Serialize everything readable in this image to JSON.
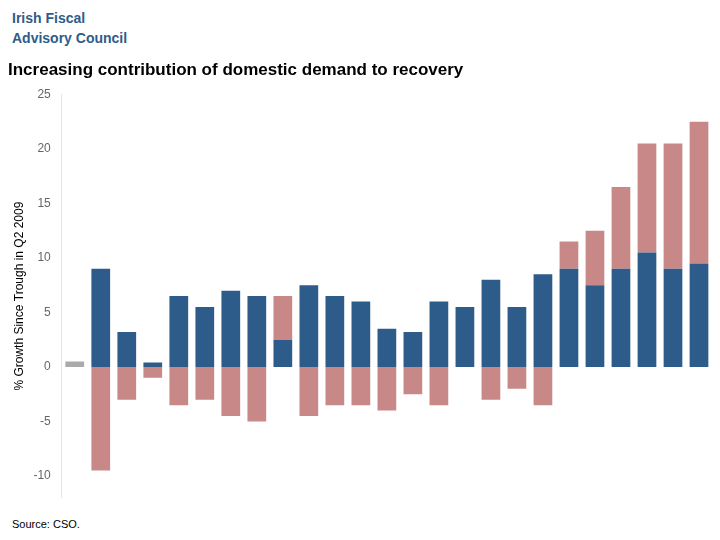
{
  "chart_data": {
    "type": "bar",
    "title": "Increasing contribution of domestic demand to recovery",
    "ylabel": "% Growth Since Trough in Q2 2009",
    "annotations": [
      "Irish Fiscal",
      "Advisory Council",
      "Source: CSO."
    ],
    "categories": [
      null,
      null,
      null,
      null,
      null,
      null,
      null,
      null,
      null,
      null,
      null,
      null,
      null,
      null,
      null,
      null,
      null,
      null,
      null,
      null,
      null,
      null,
      null,
      null,
      null
    ],
    "series": [
      {
        "color": "#AAAAAA",
        "values": [
          0.5,
          null,
          null,
          null,
          null,
          null,
          null,
          null,
          null,
          null,
          null,
          null,
          null,
          null,
          null,
          null,
          null,
          null,
          null,
          null,
          null,
          null,
          null,
          null,
          null
        ]
      },
      {
        "color": "#2E5C8A",
        "values": [
          null,
          9.0,
          3.2,
          0.4,
          6.5,
          5.5,
          7.0,
          6.5,
          2.5,
          7.5,
          6.5,
          6.0,
          3.5,
          3.2,
          6.0,
          5.5,
          8.0,
          5.5,
          8.5,
          9.0,
          7.5,
          9.0,
          10.5,
          9.0,
          9.5
        ]
      },
      {
        "color": "#C98888",
        "values": [
          null,
          -9.5,
          -3.0,
          -1.0,
          -3.5,
          -3.0,
          -4.5,
          -5.0,
          4.0,
          -4.5,
          -3.5,
          -3.5,
          -4.0,
          -2.5,
          -3.5,
          0.0,
          -3.0,
          -2.0,
          -3.5,
          2.5,
          5.0,
          7.5,
          10.0,
          11.5,
          13.0
        ]
      }
    ],
    "stacked": true,
    "ylim": [
      -12,
      25
    ],
    "yticks": [
      -10,
      -5,
      0,
      5,
      10,
      15,
      20,
      25
    ],
    "grid": false,
    "tick_labels": "y"
  }
}
